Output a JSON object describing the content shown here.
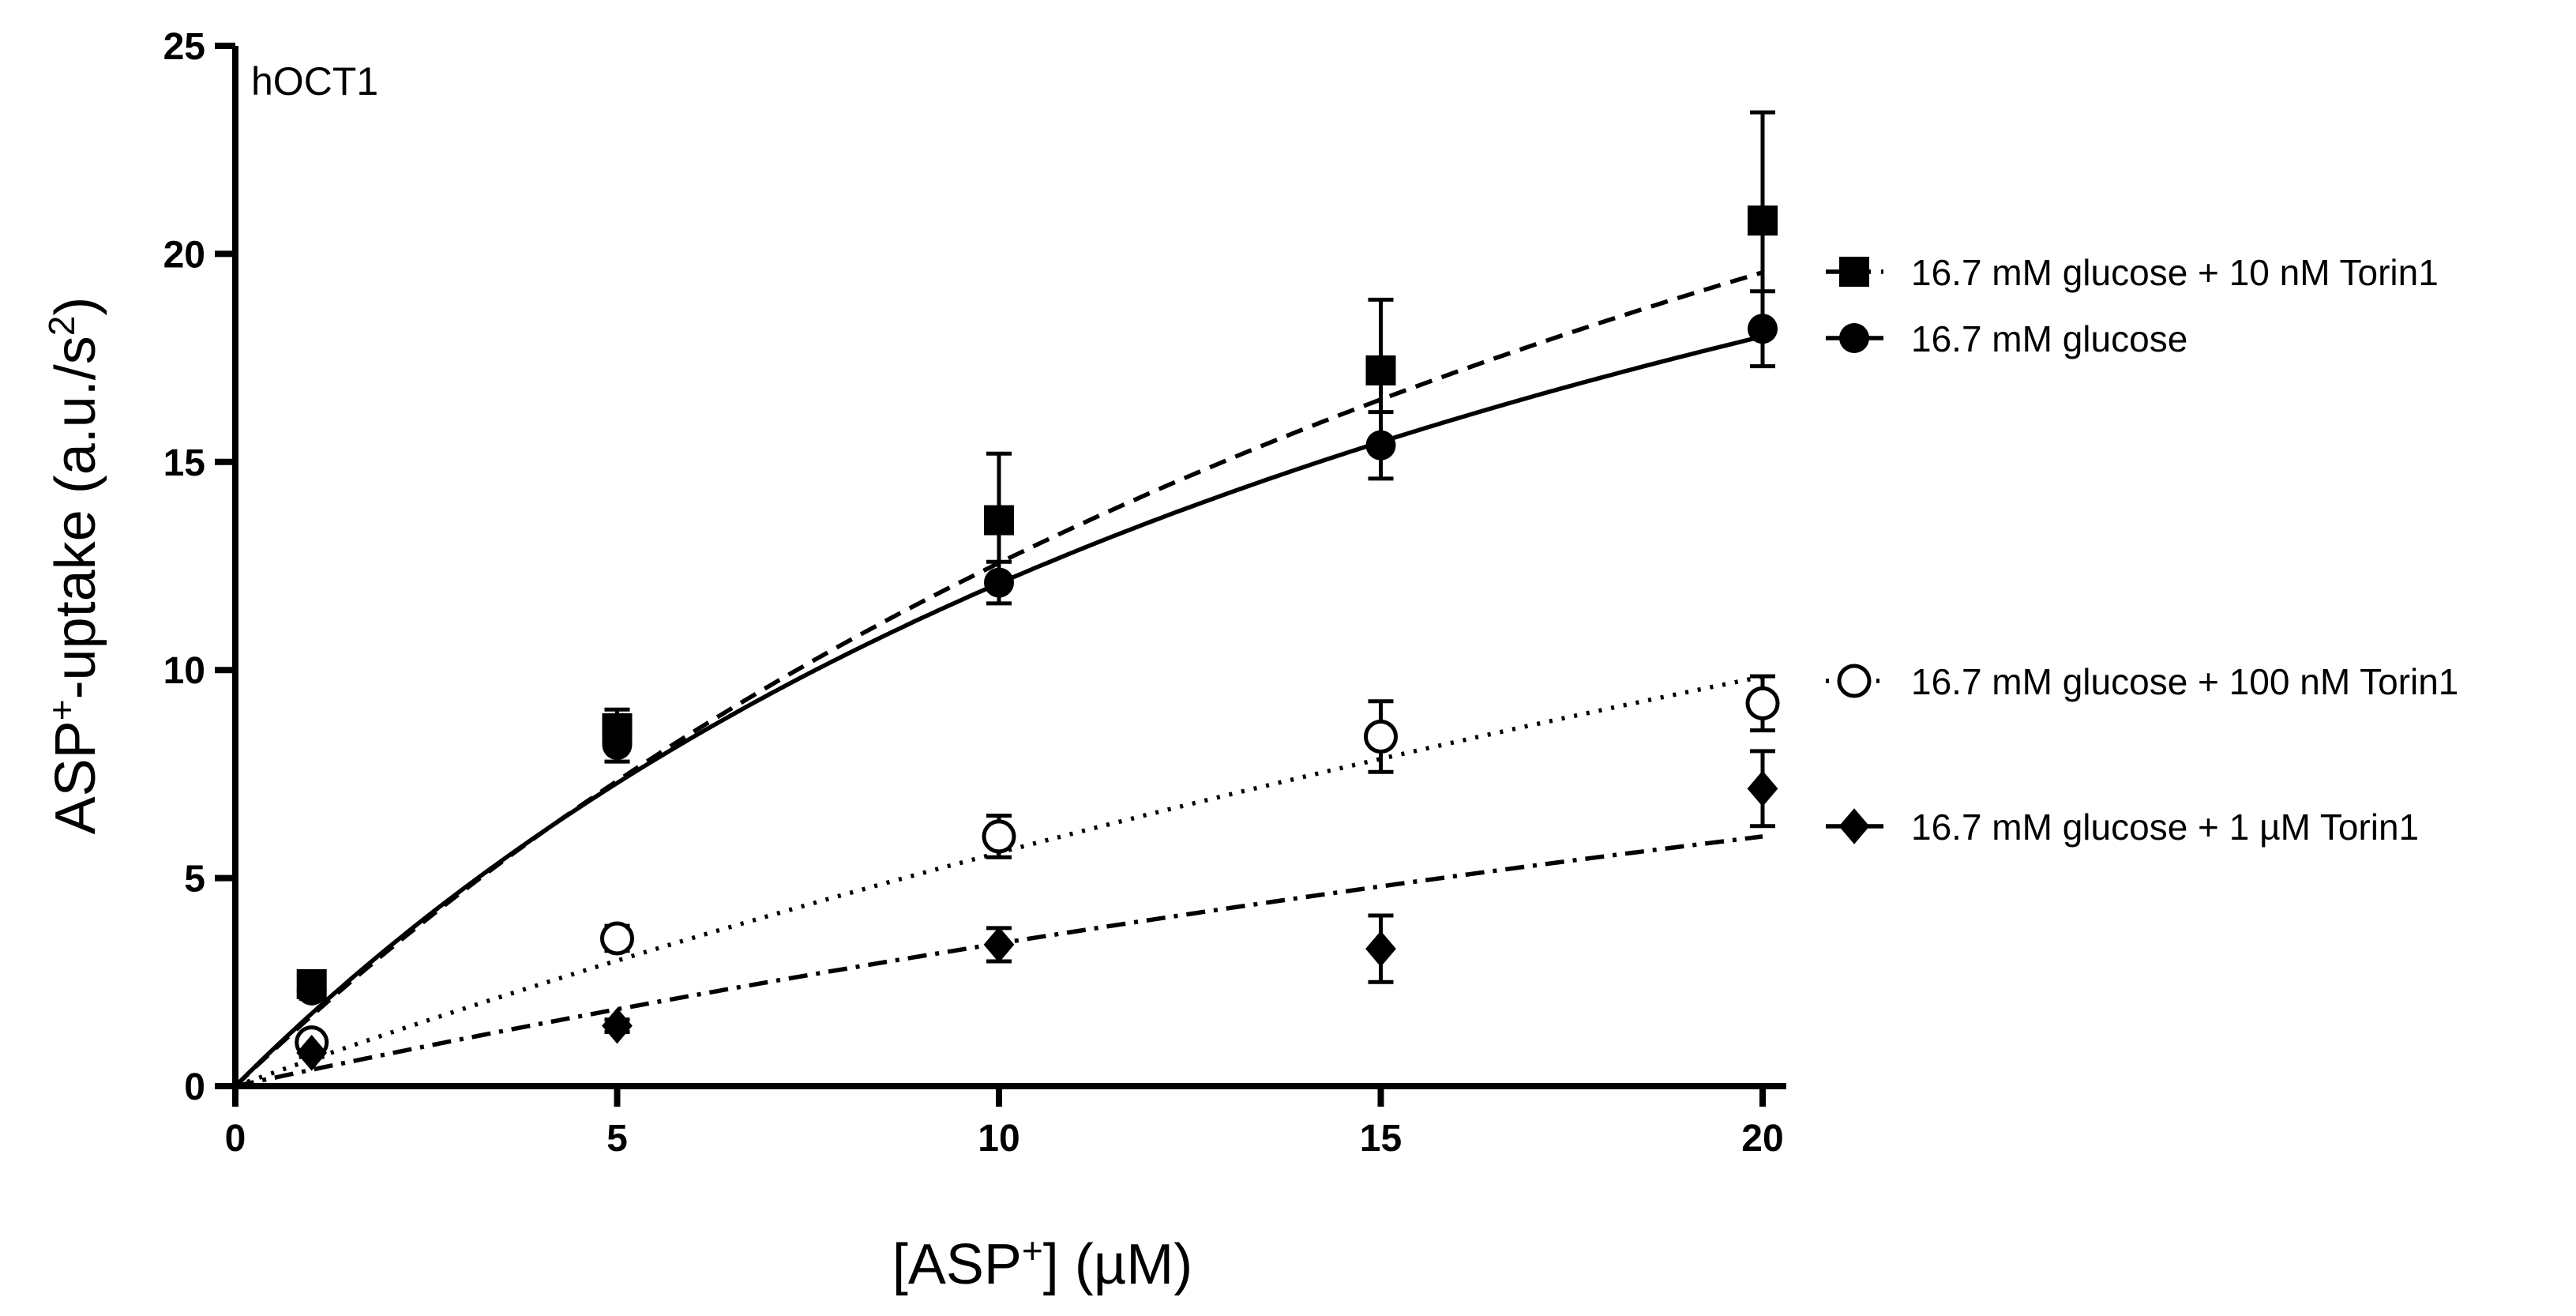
{
  "chart_data": {
    "type": "scatter",
    "annotation": "hOCT1",
    "xlabel": {
      "pre": "[ASP",
      "sup": "+",
      "post": "] (µM)"
    },
    "ylabel": {
      "pre": "ASP",
      "sup1": "+",
      "mid": "-uptake (a.u./s",
      "sup2": "2",
      "post": ")"
    },
    "xlim": [
      0,
      20
    ],
    "ylim": [
      0,
      25
    ],
    "xticks": [
      0,
      5,
      10,
      15,
      20
    ],
    "yticks": [
      0,
      5,
      10,
      15,
      20,
      25
    ],
    "grid": false,
    "legend_position": "right",
    "series": [
      {
        "name": "16.7 mM glucose + 10 nM Torin1",
        "marker": "square",
        "fill": "#000000",
        "line_style": "dashed",
        "x": [
          1,
          5,
          10,
          15,
          20
        ],
        "y": [
          2.45,
          8.6,
          13.6,
          17.2,
          20.8
        ],
        "err": [
          0.25,
          0.45,
          1.6,
          1.7,
          2.6
        ],
        "fit": {
          "vmax": 44.0,
          "km": 25.0
        }
      },
      {
        "name": "16.7 mM glucose",
        "marker": "circle",
        "fill": "#000000",
        "line_style": "solid",
        "x": [
          1,
          5,
          10,
          15,
          20
        ],
        "y": [
          2.3,
          8.2,
          12.1,
          15.4,
          18.2
        ],
        "err": [
          0.2,
          0.4,
          0.5,
          0.8,
          0.9
        ],
        "fit": {
          "vmax": 35.4,
          "km": 19.3
        }
      },
      {
        "name": "16.7 mM glucose + 100 nM Torin1",
        "marker": "circle-open",
        "fill": "#ffffff",
        "line_style": "dotted",
        "x": [
          1,
          5,
          10,
          15,
          20
        ],
        "y": [
          1.05,
          3.55,
          6.0,
          8.4,
          9.2
        ],
        "err": [
          0.2,
          0.3,
          0.5,
          0.85,
          0.65
        ],
        "fit": {
          "vmax": 40.0,
          "km": 61.3
        }
      },
      {
        "name": "16.7 mM glucose + 1 µM Torin1",
        "marker": "diamond",
        "fill": "#000000",
        "line_style": "dashdot",
        "x": [
          1,
          5,
          10,
          15,
          20
        ],
        "y": [
          0.8,
          1.45,
          3.4,
          3.3,
          7.15
        ],
        "err": [
          0.1,
          0.15,
          0.4,
          0.8,
          0.9
        ],
        "fit": {
          "vmax": 24.0,
          "km": 60.0
        }
      }
    ],
    "legend_groups": [
      [
        0,
        1
      ],
      [
        2
      ],
      [
        3
      ]
    ]
  }
}
